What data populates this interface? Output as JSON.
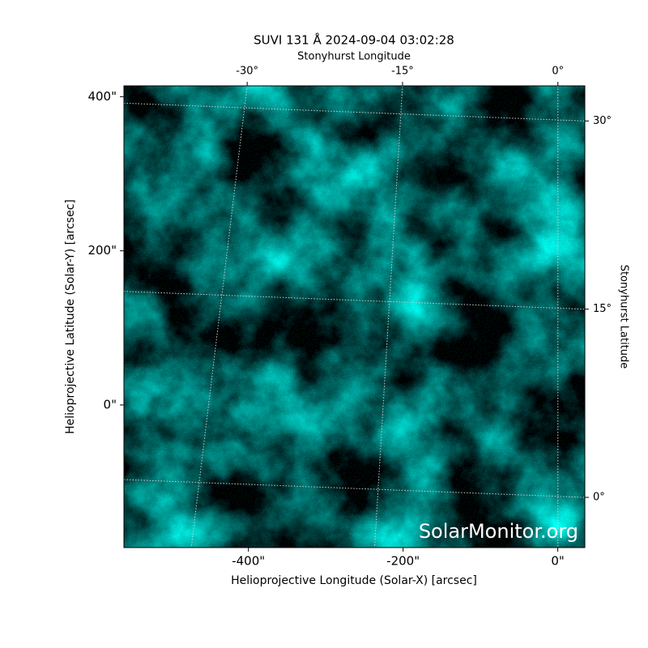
{
  "chart_data": {
    "type": "image",
    "title": "SUVI 131 Å 2024-09-04 03:02:28",
    "xlabel": "Helioprojective Longitude (Solar-X) [arcsec]",
    "ylabel": "Helioprojective Latitude (Solar-Y) [arcsec]",
    "x2label": "Stonyhurst Longitude",
    "y2label": "Stonyhurst Latitude",
    "watermark": "SolarMonitor.org",
    "xlim": [
      -561,
      35
    ],
    "ylim": [
      -185,
      414
    ],
    "xticks": [
      {
        "value": -400,
        "label": "-400\""
      },
      {
        "value": -200,
        "label": "-200\""
      },
      {
        "value": 0,
        "label": "0\""
      }
    ],
    "yticks": [
      {
        "value": 0,
        "label": "0\""
      },
      {
        "value": 200,
        "label": "200\""
      },
      {
        "value": 400,
        "label": "400\""
      }
    ],
    "x2lim": [
      -41.9,
      2.6
    ],
    "y2lim": [
      -4.0,
      32.8
    ],
    "x2ticks": [
      {
        "value": -30,
        "label": "-30°"
      },
      {
        "value": -15,
        "label": "-15°"
      },
      {
        "value": 0,
        "label": "0°"
      }
    ],
    "y2ticks": [
      {
        "value": 0,
        "label": "0°"
      },
      {
        "value": 15,
        "label": "15°"
      },
      {
        "value": 30,
        "label": "30°"
      }
    ],
    "grid": true
  }
}
